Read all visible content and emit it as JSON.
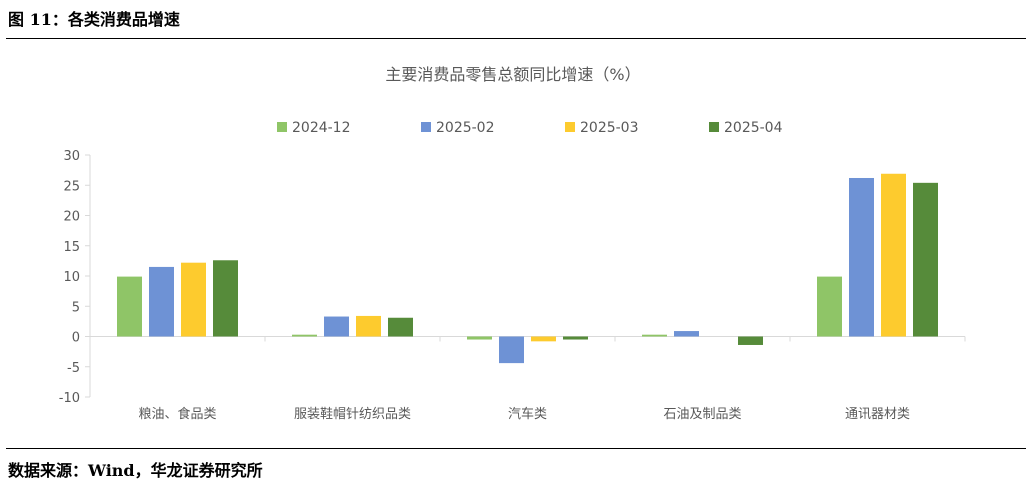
{
  "figure": {
    "title": "图 11：各类消费品增速",
    "source": "数据来源：Wind，华龙证券研究所"
  },
  "colors": {
    "2024-12": "#8fc567",
    "2025-02": "#6e92d5",
    "2025-03": "#fdcb2e",
    "2025-04": "#568b3a",
    "axis": "#d9d9d9",
    "text": "#595959"
  },
  "chart_data": {
    "type": "bar",
    "title": "主要消费品零售总额同比增速（%）",
    "categories": [
      "粮油、食品类",
      "服装鞋帽针纺织品类",
      "汽车类",
      "石油及制品类",
      "通讯器材类"
    ],
    "series": [
      {
        "name": "2024-12",
        "values": [
          9.9,
          0.3,
          -0.5,
          0.3,
          9.9
        ]
      },
      {
        "name": "2025-02",
        "values": [
          11.5,
          3.3,
          -4.4,
          0.9,
          26.2
        ]
      },
      {
        "name": "2025-03",
        "values": [
          12.2,
          3.4,
          -0.8,
          0.0,
          26.9
        ]
      },
      {
        "name": "2025-04",
        "values": [
          12.6,
          3.1,
          -0.5,
          -1.4,
          25.4
        ]
      }
    ],
    "ylim": [
      -10,
      30
    ],
    "yticks": [
      -10,
      -5,
      0,
      5,
      10,
      15,
      20,
      25,
      30
    ],
    "legend_position": "top",
    "grid": false
  }
}
